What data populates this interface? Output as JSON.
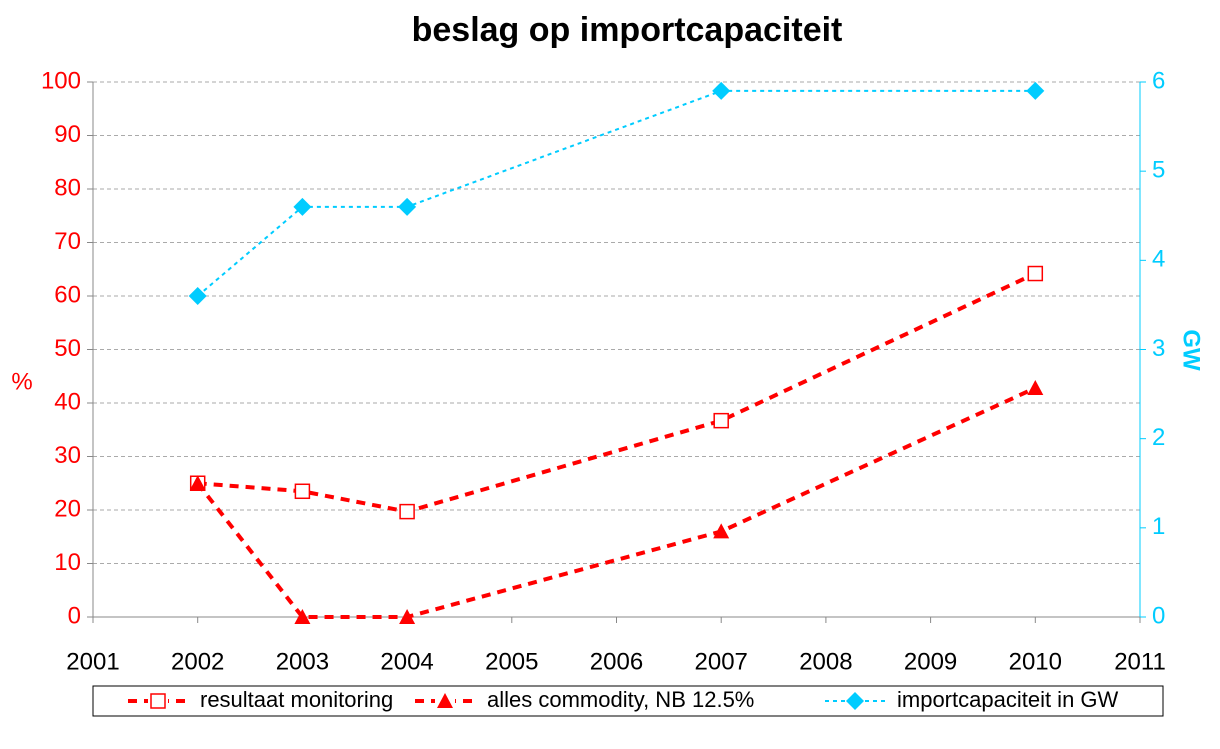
{
  "chart_data": {
    "type": "line",
    "title": "beslag op importcapaciteit",
    "ylabel": "%",
    "y2label": "GW",
    "x": [
      2002,
      2003,
      2004,
      2007,
      2010
    ],
    "xlim": [
      2001,
      2011
    ],
    "xticks": [
      2001,
      2002,
      2003,
      2004,
      2005,
      2006,
      2007,
      2008,
      2009,
      2010,
      2011
    ],
    "ylim": [
      0,
      100
    ],
    "yticks": [
      0,
      10,
      20,
      30,
      40,
      50,
      60,
      70,
      80,
      90,
      100
    ],
    "y2lim": [
      0,
      6
    ],
    "y2ticks": [
      0,
      1,
      2,
      3,
      4,
      5,
      6
    ],
    "grid": true,
    "legend": "bottom",
    "series": [
      {
        "name": "resultaat monitoring",
        "color": "#ff0000",
        "marker": "square",
        "line_style": "dashed",
        "values": [
          25,
          23.5,
          19.7,
          36.7,
          64.2
        ]
      },
      {
        "name": "alles commodity, NB 12.5%",
        "color": "#ff0000",
        "marker": "triangle",
        "line_style": "dashed",
        "values": [
          25,
          0,
          0,
          16,
          42.8
        ]
      },
      {
        "name": "importcapaciteit in GW",
        "color": "#00ccff",
        "marker": "diamond",
        "line_style": "dotted",
        "axis": "y2",
        "values": [
          3.6,
          4.6,
          4.6,
          5.9,
          5.9
        ]
      }
    ]
  }
}
